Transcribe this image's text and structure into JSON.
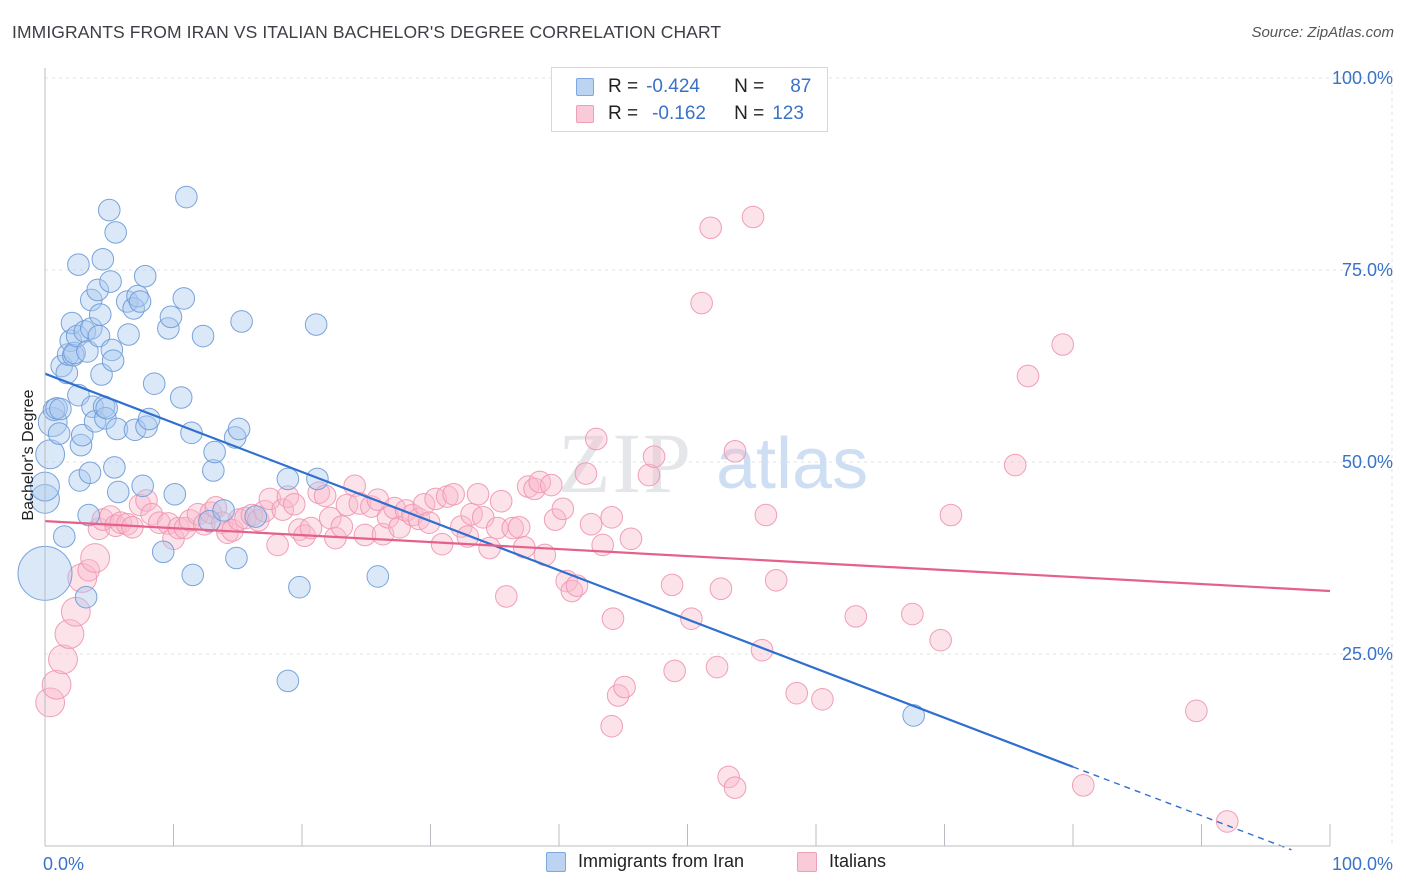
{
  "header": {
    "title": "IMMIGRANTS FROM IRAN VS ITALIAN BACHELOR'S DEGREE CORRELATION CHART",
    "source": "Source: ZipAtlas.com"
  },
  "watermark": {
    "zip": "ZIP",
    "atlas": "atlas"
  },
  "legend": {
    "r_label": "R =",
    "n_label": "N =",
    "rows": [
      {
        "r": "-0.424",
        "n": "87",
        "color": "#a9c7ee"
      },
      {
        "r": "-0.162",
        "n": "123",
        "color": "#f5b8ca"
      }
    ]
  },
  "bottom_legend": [
    {
      "label": "Immigrants from Iran",
      "color": "#a9c7ee"
    },
    {
      "label": "Italians",
      "color": "#f5b8ca"
    }
  ],
  "chart_data": {
    "type": "scatter",
    "title": "IMMIGRANTS FROM IRAN VS ITALIAN BACHELOR'S DEGREE CORRELATION CHART",
    "ylabel": "Bachelor's Degree",
    "xlabel": "",
    "xlim": [
      0,
      100
    ],
    "ylim": [
      0,
      100
    ],
    "x_tick_labels": [
      "0.0%",
      "100.0%"
    ],
    "y_tick_labels": [
      "25.0%",
      "50.0%",
      "75.0%",
      "100.0%"
    ],
    "y_ticks": [
      25,
      50,
      75,
      100
    ],
    "grid": true,
    "legend_position": "top-center",
    "colors": {
      "iran": "#5b8fd8",
      "iran_line": "#2f6fd0",
      "italians": "#f08aa8",
      "italians_line": "#e4618b"
    },
    "series": [
      {
        "name": "Immigrants from Iran",
        "R": -0.424,
        "N": 87,
        "trend": {
          "x0": 0,
          "y0": 61.5,
          "x1": 80,
          "y1": 10.3,
          "dashed_to_x": 97,
          "dashed_to_y": -0.5
        },
        "points": [
          [
            0,
            35.5,
            3
          ],
          [
            0,
            45.2,
            1.6
          ],
          [
            0,
            46.8,
            1.6
          ],
          [
            0.4,
            51,
            1.6
          ],
          [
            0.6,
            55.2,
            1.6
          ],
          [
            0.7,
            56.8,
            1.2
          ],
          [
            0.9,
            57,
            1.2
          ],
          [
            1.1,
            53.7,
            1.2
          ],
          [
            1.2,
            56.9,
            1.2
          ],
          [
            1.3,
            62.5,
            1.2
          ],
          [
            1.5,
            40.3,
            1.2
          ],
          [
            1.7,
            61.6,
            1.2
          ],
          [
            1.8,
            64,
            1.2
          ],
          [
            2,
            65.8,
            1.2
          ],
          [
            2.2,
            63.9,
            1.2
          ],
          [
            2.1,
            68.1,
            1.2
          ],
          [
            2.3,
            64.2,
            1.2
          ],
          [
            2.5,
            66.4,
            1.2
          ],
          [
            2.6,
            58.7,
            1.2
          ],
          [
            2.7,
            47.6,
            1.2
          ],
          [
            2.8,
            52.2,
            1.2
          ],
          [
            2.9,
            53.5,
            1.2
          ],
          [
            2.6,
            75.7,
            1.2
          ],
          [
            3.1,
            67,
            1.2
          ],
          [
            3.2,
            32.4,
            1.2
          ],
          [
            3.3,
            64.4,
            1.2
          ],
          [
            3.4,
            43.1,
            1.2
          ],
          [
            3.5,
            48.6,
            1.2
          ],
          [
            3.6,
            67.4,
            1.2
          ],
          [
            3.7,
            57.2,
            1.2
          ],
          [
            3.6,
            71.1,
            1.2
          ],
          [
            3.9,
            55.3,
            1.2
          ],
          [
            4.1,
            72.4,
            1.2
          ],
          [
            4.2,
            66.4,
            1.2
          ],
          [
            4.3,
            69.2,
            1.2
          ],
          [
            4.4,
            61.4,
            1.2
          ],
          [
            4.5,
            76.4,
            1.2
          ],
          [
            4.6,
            57.2,
            1.2
          ],
          [
            4.7,
            55.7,
            1.2
          ],
          [
            4.8,
            57,
            1.2
          ],
          [
            5,
            82.8,
            1.2
          ],
          [
            5.1,
            73.5,
            1.2
          ],
          [
            5.2,
            64.6,
            1.2
          ],
          [
            5.3,
            63.2,
            1.2
          ],
          [
            5.4,
            49.3,
            1.2
          ],
          [
            5.5,
            79.9,
            1.2
          ],
          [
            5.6,
            54.3,
            1.2
          ],
          [
            5.7,
            46.1,
            1.2
          ],
          [
            6.4,
            70.9,
            1.2
          ],
          [
            6.5,
            66.6,
            1.2
          ],
          [
            6.9,
            70,
            1.2
          ],
          [
            7,
            54.2,
            1.2
          ],
          [
            7.2,
            71.6,
            1.2
          ],
          [
            7.4,
            70.9,
            1.2
          ],
          [
            7.6,
            46.9,
            1.2
          ],
          [
            7.8,
            74.2,
            1.2
          ],
          [
            7.9,
            54.6,
            1.2
          ],
          [
            8.1,
            55.6,
            1.2
          ],
          [
            8.5,
            60.2,
            1.2
          ],
          [
            9.2,
            38.3,
            1.2
          ],
          [
            9.6,
            67.4,
            1.2
          ],
          [
            9.8,
            68.9,
            1.2
          ],
          [
            10.1,
            45.8,
            1.2
          ],
          [
            10.6,
            58.4,
            1.2
          ],
          [
            10.8,
            71.3,
            1.2
          ],
          [
            11,
            84.5,
            1.2
          ],
          [
            11.4,
            53.8,
            1.2
          ],
          [
            11.5,
            35.3,
            1.2
          ],
          [
            12.3,
            66.4,
            1.2
          ],
          [
            12.8,
            42.3,
            1.2
          ],
          [
            13.1,
            48.9,
            1.2
          ],
          [
            13.2,
            51.3,
            1.2
          ],
          [
            13.9,
            43.7,
            1.2
          ],
          [
            14.8,
            53.2,
            1.2
          ],
          [
            14.9,
            37.5,
            1.2
          ],
          [
            15.1,
            54.3,
            1.2
          ],
          [
            15.3,
            68.3,
            1.2
          ],
          [
            16.4,
            42.9,
            1.2
          ],
          [
            18.9,
            21.5,
            1.2
          ],
          [
            18.9,
            47.8,
            1.2
          ],
          [
            19.8,
            33.7,
            1.2
          ],
          [
            21.1,
            67.9,
            1.2
          ],
          [
            21.2,
            47.8,
            1.2
          ],
          [
            25.9,
            35.1,
            1.2
          ],
          [
            67.6,
            17,
            1.2
          ]
        ]
      },
      {
        "name": "Italians",
        "R": -0.162,
        "N": 123,
        "trend": {
          "x0": 0,
          "y0": 42.3,
          "x1": 100,
          "y1": 33.2
        },
        "points": [
          [
            0.4,
            18.7,
            1.6
          ],
          [
            0.9,
            21,
            1.6
          ],
          [
            1.4,
            24.3,
            1.6
          ],
          [
            1.9,
            27.6,
            1.6
          ],
          [
            2.4,
            30.5,
            1.6
          ],
          [
            2.9,
            34.9,
            1.6
          ],
          [
            3.4,
            35.9,
            1.2
          ],
          [
            3.9,
            37.5,
            1.6
          ],
          [
            4.2,
            41.3,
            1.2
          ],
          [
            4.5,
            42.5,
            1.2
          ],
          [
            5.1,
            42.9,
            1.2
          ],
          [
            5.5,
            41.7,
            1.2
          ],
          [
            5.9,
            42.1,
            1.2
          ],
          [
            6.4,
            41.9,
            1.2
          ],
          [
            6.8,
            41.5,
            1.2
          ],
          [
            7.4,
            44.4,
            1.2
          ],
          [
            7.9,
            45,
            1.2
          ],
          [
            8.3,
            43.2,
            1.2
          ],
          [
            8.9,
            42.1,
            1.2
          ],
          [
            9.6,
            42,
            1.2
          ],
          [
            10,
            40,
            1.2
          ],
          [
            10.4,
            41.4,
            1.2
          ],
          [
            10.9,
            41.4,
            1.2
          ],
          [
            11.3,
            42.4,
            1.2
          ],
          [
            11.9,
            43.2,
            1.2
          ],
          [
            12.4,
            41.9,
            1.2
          ],
          [
            12.9,
            43.4,
            1.2
          ],
          [
            13.3,
            44.1,
            1.2
          ],
          [
            13.8,
            42.1,
            1.2
          ],
          [
            14.2,
            40.8,
            1.2
          ],
          [
            14.6,
            41.1,
            1.2
          ],
          [
            15.1,
            42.5,
            1.2
          ],
          [
            15.6,
            42.7,
            1.2
          ],
          [
            16.1,
            43.1,
            1.2
          ],
          [
            16.6,
            42.4,
            1.2
          ],
          [
            17.1,
            43.6,
            1.2
          ],
          [
            17.5,
            45.2,
            1.2
          ],
          [
            18.1,
            39.2,
            1.2
          ],
          [
            18.5,
            43.8,
            1.2
          ],
          [
            18.9,
            45.5,
            1.2
          ],
          [
            19.4,
            44.5,
            1.2
          ],
          [
            19.8,
            41.2,
            1.2
          ],
          [
            20.2,
            40.4,
            1.2
          ],
          [
            20.7,
            41.4,
            1.2
          ],
          [
            21.3,
            46,
            1.2
          ],
          [
            21.8,
            45.6,
            1.2
          ],
          [
            22.2,
            42.7,
            1.2
          ],
          [
            22.6,
            40.1,
            1.2
          ],
          [
            23.1,
            41.6,
            1.2
          ],
          [
            23.5,
            44.4,
            1.2
          ],
          [
            24.1,
            46.9,
            1.2
          ],
          [
            24.5,
            44.6,
            1.2
          ],
          [
            24.9,
            40.5,
            1.2
          ],
          [
            25.4,
            44.2,
            1.2
          ],
          [
            25.9,
            45.1,
            1.2
          ],
          [
            26.3,
            40.6,
            1.2
          ],
          [
            26.7,
            42.8,
            1.2
          ],
          [
            27.2,
            44,
            1.2
          ],
          [
            27.6,
            41.5,
            1.2
          ],
          [
            28.1,
            43.7,
            1.2
          ],
          [
            28.6,
            43.1,
            1.2
          ],
          [
            29.1,
            42.6,
            1.2
          ],
          [
            29.5,
            44.5,
            1.2
          ],
          [
            29.9,
            42.1,
            1.2
          ],
          [
            30.4,
            45.2,
            1.2
          ],
          [
            30.9,
            39.3,
            1.2
          ],
          [
            31.3,
            45.5,
            1.2
          ],
          [
            31.8,
            45.8,
            1.2
          ],
          [
            32.4,
            41.6,
            1.2
          ],
          [
            32.9,
            40.3,
            1.2
          ],
          [
            33.2,
            43.2,
            1.2
          ],
          [
            33.7,
            45.8,
            1.2
          ],
          [
            34.1,
            42.8,
            1.2
          ],
          [
            34.6,
            38.8,
            1.2
          ],
          [
            35.2,
            41.4,
            1.2
          ],
          [
            35.5,
            44.9,
            1.2
          ],
          [
            35.9,
            32.5,
            1.2
          ],
          [
            36.4,
            41.4,
            1.2
          ],
          [
            36.9,
            41.5,
            1.2
          ],
          [
            37.3,
            38.9,
            1.2
          ],
          [
            37.6,
            46.8,
            1.2
          ],
          [
            38.1,
            46.5,
            1.2
          ],
          [
            38.5,
            47.4,
            1.2
          ],
          [
            38.9,
            37.9,
            1.2
          ],
          [
            39.4,
            47,
            1.2
          ],
          [
            39.7,
            42.5,
            1.2
          ],
          [
            40.3,
            43.9,
            1.2
          ],
          [
            40.6,
            34.5,
            1.2
          ],
          [
            41,
            33.2,
            1.2
          ],
          [
            41.4,
            33.9,
            1.2
          ],
          [
            42.1,
            48.5,
            1.2
          ],
          [
            42.5,
            41.9,
            1.2
          ],
          [
            42.9,
            53,
            1.2
          ],
          [
            43.4,
            39.2,
            1.2
          ],
          [
            44.1,
            42.8,
            1.2
          ],
          [
            44.2,
            29.6,
            1.2
          ],
          [
            44.6,
            19.6,
            1.2
          ],
          [
            44.1,
            15.6,
            1.2
          ],
          [
            45.1,
            20.7,
            1.2
          ],
          [
            45.6,
            40,
            1.2
          ],
          [
            47,
            48.3,
            1.2
          ],
          [
            47.4,
            50.7,
            1.2
          ],
          [
            48.8,
            34,
            1.2
          ],
          [
            49,
            22.8,
            1.2
          ],
          [
            50.3,
            29.6,
            1.2
          ],
          [
            51.1,
            70.7,
            1.2
          ],
          [
            51.8,
            80.5,
            1.2
          ],
          [
            52.3,
            23.3,
            1.2
          ],
          [
            52.6,
            33.5,
            1.2
          ],
          [
            53.2,
            9,
            1.2
          ],
          [
            53.7,
            7.6,
            1.2
          ],
          [
            53.7,
            51.4,
            1.2
          ],
          [
            55.1,
            81.9,
            1.2
          ],
          [
            55.8,
            25.5,
            1.2
          ],
          [
            56.1,
            43.1,
            1.2
          ],
          [
            56.9,
            34.6,
            1.2
          ],
          [
            58.5,
            19.9,
            1.2
          ],
          [
            60.5,
            19.1,
            1.2
          ],
          [
            63.1,
            29.9,
            1.2
          ],
          [
            67.5,
            30.2,
            1.2
          ],
          [
            69.7,
            26.8,
            1.2
          ],
          [
            70.5,
            43.1,
            1.2
          ],
          [
            75.5,
            49.6,
            1.2
          ],
          [
            76.5,
            61.2,
            1.2
          ],
          [
            79.2,
            65.3,
            1.2
          ],
          [
            80.8,
            7.9,
            1.2
          ],
          [
            89.6,
            17.6,
            1.2
          ],
          [
            92,
            3.2,
            1.2
          ]
        ]
      }
    ]
  }
}
